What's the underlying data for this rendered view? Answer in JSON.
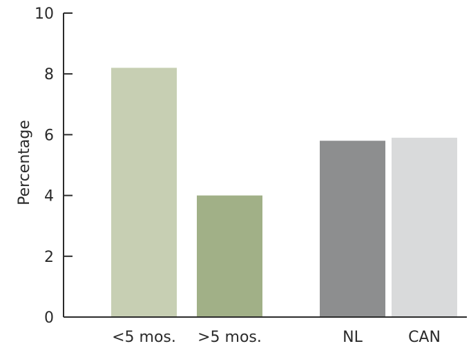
{
  "chart_data": {
    "type": "bar",
    "title": "",
    "xlabel": "",
    "ylabel": "Percentage",
    "ylim": [
      0,
      10
    ],
    "yticks": [
      0,
      2,
      4,
      6,
      8,
      10
    ],
    "grid": false,
    "categories": [
      "<5 mos.",
      ">5 mos.",
      "NL",
      "CAN"
    ],
    "values": [
      8.2,
      4.0,
      5.8,
      5.9
    ],
    "colors": [
      "#c7cfb3",
      "#a1b087",
      "#8d8e8f",
      "#d9dadb"
    ]
  }
}
